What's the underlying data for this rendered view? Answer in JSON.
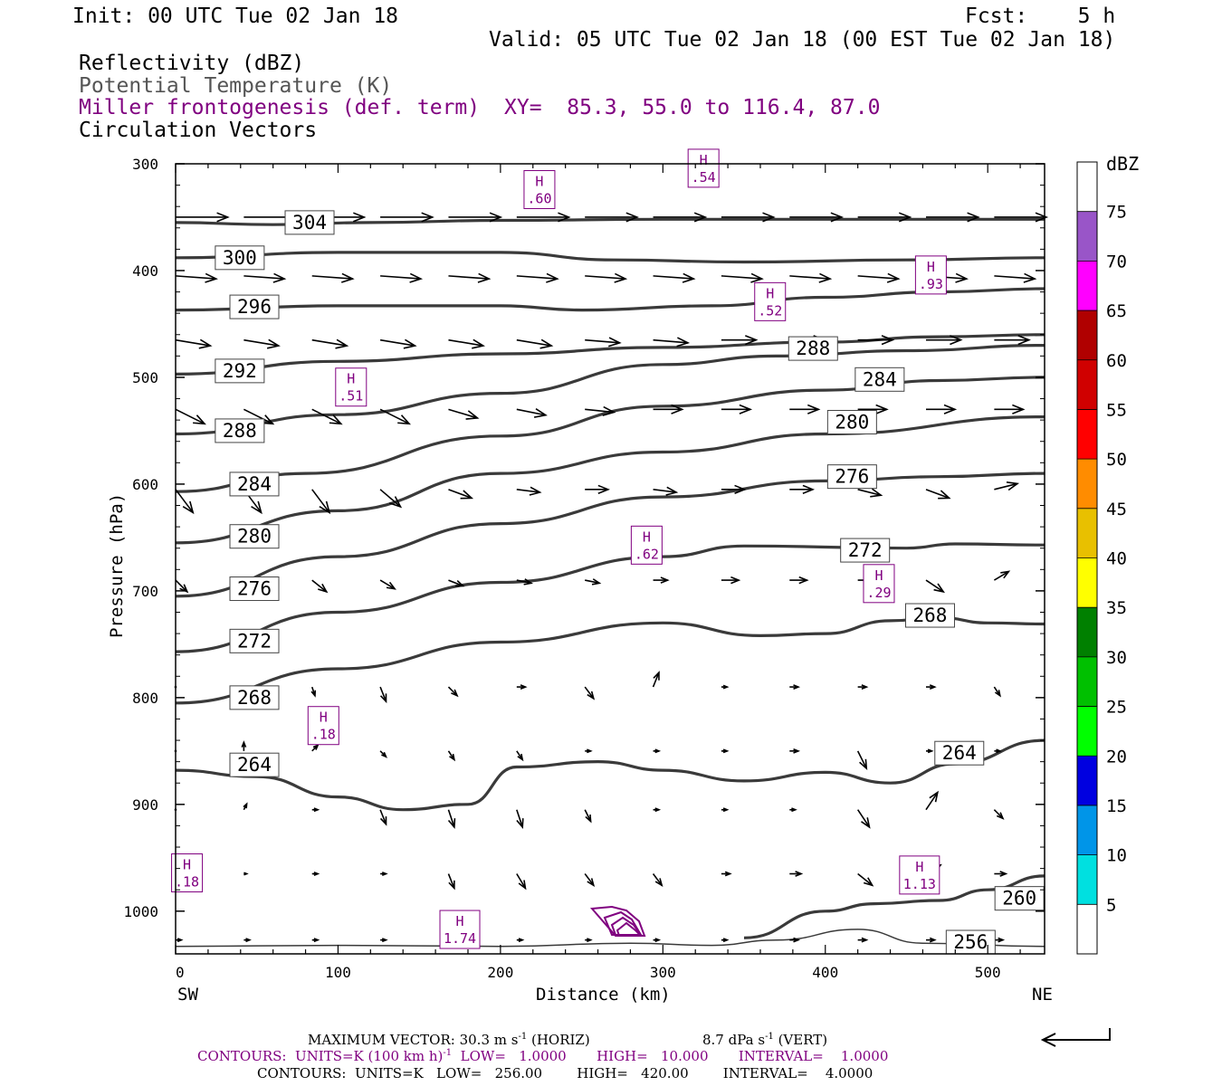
{
  "header": {
    "init": "Init: 00 UTC Tue 02 Jan 18",
    "fcst": "Fcst:    5 h",
    "valid": "Valid: 05 UTC Tue 02 Jan 18 (00 EST Tue 02 Jan 18)",
    "field1": "Reflectivity (dBZ)",
    "field2": "Potential Temperature (K)",
    "field3": "Miller frontogenesis (def. term)",
    "xy": "XY=  85.3, 55.0 to 116.4, 87.0",
    "field4": "Circulation Vectors"
  },
  "colors": {
    "theta": "#3a3a3a",
    "fronto": "#800080",
    "vectors": "#000000"
  },
  "colorbar": {
    "unit": "dBZ",
    "levels": [
      "5",
      "10",
      "15",
      "20",
      "25",
      "30",
      "35",
      "40",
      "45",
      "50",
      "55",
      "60",
      "65",
      "70",
      "75"
    ],
    "colors": [
      "#ffffff",
      "#00e0e0",
      "#0095e8",
      "#0000e0",
      "#00ff00",
      "#00c000",
      "#008000",
      "#ffff00",
      "#e8c000",
      "#ff8c00",
      "#ff0000",
      "#d00000",
      "#b00000",
      "#ff00ff",
      "#9955c8",
      "#ffffff"
    ]
  },
  "chart_data": {
    "type": "contour cross-section",
    "xlabel": "Distance (km)",
    "ylabel": "Pressure (hPa)",
    "xlim": [
      0,
      535
    ],
    "ylim": [
      300,
      1040
    ],
    "xticks": [
      "0",
      "100",
      "200",
      "300",
      "400",
      "500"
    ],
    "yticks": [
      "300",
      "400",
      "500",
      "600",
      "700",
      "800",
      "900",
      "1000"
    ],
    "left_end_label": "SW",
    "right_end_label": "NE",
    "theta_contours": [
      {
        "label": "304",
        "line": [
          [
            0,
            355
          ],
          [
            60,
            357
          ],
          [
            120,
            355
          ],
          [
            200,
            353
          ],
          [
            300,
            352
          ],
          [
            400,
            352
          ],
          [
            535,
            352
          ]
        ]
      },
      {
        "label": "300",
        "line": [
          [
            0,
            388
          ],
          [
            100,
            383
          ],
          [
            200,
            383
          ],
          [
            270,
            390
          ],
          [
            350,
            392
          ],
          [
            450,
            390
          ],
          [
            535,
            388
          ]
        ]
      },
      {
        "label": "296",
        "line": [
          [
            0,
            437
          ],
          [
            100,
            433
          ],
          [
            200,
            433
          ],
          [
            250,
            437
          ],
          [
            330,
            433
          ],
          [
            400,
            425
          ],
          [
            470,
            420
          ],
          [
            535,
            417
          ]
        ]
      },
      {
        "label": "292",
        "line": [
          [
            0,
            497
          ],
          [
            100,
            485
          ],
          [
            200,
            478
          ],
          [
            300,
            472
          ],
          [
            400,
            467
          ],
          [
            470,
            462
          ],
          [
            535,
            460
          ]
        ]
      },
      {
        "label": "288",
        "line": [
          [
            0,
            553
          ],
          [
            100,
            535
          ],
          [
            200,
            515
          ],
          [
            300,
            488
          ],
          [
            370,
            480
          ],
          [
            450,
            475
          ],
          [
            535,
            470
          ]
        ]
      },
      {
        "label": "284",
        "line": [
          [
            0,
            607
          ],
          [
            80,
            590
          ],
          [
            200,
            555
          ],
          [
            300,
            527
          ],
          [
            400,
            512
          ],
          [
            470,
            503
          ],
          [
            535,
            500
          ]
        ]
      },
      {
        "label": "280",
        "line": [
          [
            0,
            655
          ],
          [
            100,
            625
          ],
          [
            200,
            590
          ],
          [
            300,
            570
          ],
          [
            400,
            553
          ],
          [
            535,
            537
          ]
        ]
      },
      {
        "label": "276",
        "line": [
          [
            0,
            705
          ],
          [
            100,
            668
          ],
          [
            200,
            637
          ],
          [
            300,
            612
          ],
          [
            400,
            597
          ],
          [
            470,
            593
          ],
          [
            535,
            590
          ]
        ]
      },
      {
        "label": "272",
        "line": [
          [
            0,
            757
          ],
          [
            100,
            720
          ],
          [
            200,
            692
          ],
          [
            300,
            668
          ],
          [
            350,
            658
          ],
          [
            450,
            660
          ],
          [
            480,
            656
          ],
          [
            535,
            657
          ]
        ]
      },
      {
        "label": "268",
        "line": [
          [
            0,
            805
          ],
          [
            100,
            773
          ],
          [
            200,
            748
          ],
          [
            300,
            730
          ],
          [
            360,
            742
          ],
          [
            400,
            740
          ],
          [
            440,
            728
          ],
          [
            470,
            725
          ],
          [
            500,
            730
          ],
          [
            535,
            731
          ]
        ]
      },
      {
        "label": "264",
        "line": [
          [
            0,
            868
          ],
          [
            50,
            874
          ],
          [
            100,
            893
          ],
          [
            140,
            905
          ],
          [
            180,
            900
          ],
          [
            210,
            865
          ],
          [
            260,
            860
          ],
          [
            300,
            868
          ],
          [
            350,
            878
          ],
          [
            400,
            870
          ],
          [
            440,
            880
          ],
          [
            480,
            862
          ],
          [
            535,
            840
          ]
        ]
      },
      {
        "label": "260",
        "line": [
          [
            350,
            1025
          ],
          [
            400,
            1000
          ],
          [
            430,
            993
          ],
          [
            470,
            990
          ],
          [
            500,
            980
          ],
          [
            535,
            967
          ]
        ]
      },
      {
        "label": "256",
        "line": [
          [
            0,
            1033
          ],
          [
            100,
            1032
          ],
          [
            200,
            1033
          ],
          [
            280,
            1030
          ],
          [
            330,
            1032
          ],
          [
            370,
            1027
          ],
          [
            420,
            1017
          ],
          [
            460,
            1030
          ],
          [
            535,
            1033
          ]
        ]
      }
    ],
    "theta_labels": [
      {
        "text": "304",
        "at": [
          68,
          355
        ]
      },
      {
        "text": "300",
        "at": [
          25,
          388
        ]
      },
      {
        "text": "296",
        "at": [
          34,
          434
        ]
      },
      {
        "text": "292",
        "at": [
          25,
          494
        ]
      },
      {
        "text": "288",
        "at": [
          25,
          550
        ]
      },
      {
        "text": "284",
        "at": [
          34,
          600
        ]
      },
      {
        "text": "280",
        "at": [
          34,
          649
        ]
      },
      {
        "text": "276",
        "at": [
          34,
          698
        ]
      },
      {
        "text": "272",
        "at": [
          34,
          747
        ]
      },
      {
        "text": "268",
        "at": [
          34,
          800
        ]
      },
      {
        "text": "264",
        "at": [
          34,
          863
        ]
      },
      {
        "text": "288",
        "at": [
          378,
          473
        ]
      },
      {
        "text": "284",
        "at": [
          419,
          502
        ]
      },
      {
        "text": "280",
        "at": [
          402,
          542
        ]
      },
      {
        "text": "276",
        "at": [
          402,
          593
        ]
      },
      {
        "text": "272",
        "at": [
          410,
          662
        ]
      },
      {
        "text": "268",
        "at": [
          450,
          723
        ]
      },
      {
        "text": "264",
        "at": [
          468,
          852
        ]
      },
      {
        "text": "260",
        "at": [
          505,
          988
        ]
      },
      {
        "text": "256",
        "at": [
          475,
          1029
        ]
      }
    ],
    "fronto_highs": [
      {
        "text": ".60",
        "at": [
          224,
          325
        ]
      },
      {
        "text": ".54",
        "at": [
          325,
          305
        ]
      },
      {
        "text": ".93",
        "at": [
          465,
          405
        ]
      },
      {
        "text": ".52",
        "at": [
          366,
          430
        ]
      },
      {
        "text": ".51",
        "at": [
          108,
          510
        ]
      },
      {
        "text": ".62",
        "at": [
          290,
          658
        ]
      },
      {
        "text": ".29",
        "at": [
          433,
          694
        ]
      },
      {
        "text": ".18",
        "at": [
          91,
          827
        ]
      },
      {
        "text": ".18",
        "at": [
          7,
          965
        ]
      },
      {
        "text": "1.13",
        "at": [
          458,
          967
        ]
      },
      {
        "text": "1.74",
        "at": [
          175,
          1018
        ]
      }
    ],
    "vector_rows": [
      {
        "p": 350,
        "dx": [
          18,
          18,
          18,
          18,
          18,
          18,
          18,
          18,
          18,
          18,
          18,
          18,
          18
        ],
        "dy": [
          0,
          0,
          0,
          0,
          0,
          0,
          0,
          0,
          0,
          0,
          0,
          0,
          0
        ]
      },
      {
        "p": 405,
        "dx": [
          14,
          14,
          14,
          14,
          14,
          14,
          14,
          14,
          14,
          14,
          14,
          14,
          14
        ],
        "dy": [
          1,
          1,
          1,
          1,
          1,
          1,
          1,
          1,
          1,
          1,
          1,
          1,
          1
        ]
      },
      {
        "p": 465,
        "dx": [
          12,
          12,
          12,
          12,
          12,
          12,
          12,
          12,
          12,
          12,
          12,
          12,
          12
        ],
        "dy": [
          2,
          2,
          2,
          2,
          2,
          2,
          1,
          1,
          0,
          0,
          0,
          0,
          0
        ]
      },
      {
        "p": 530,
        "dx": [
          10,
          10,
          10,
          10,
          10,
          10,
          10,
          10,
          10,
          10,
          10,
          10,
          10
        ],
        "dy": [
          5,
          5,
          5,
          5,
          3,
          2,
          1,
          0,
          0,
          0,
          0,
          0,
          0
        ]
      },
      {
        "p": 605,
        "dx": [
          6,
          6,
          6,
          7,
          8,
          8,
          8,
          8,
          8,
          8,
          8,
          8,
          8
        ],
        "dy": [
          8,
          8,
          8,
          6,
          3,
          1,
          0,
          1,
          0,
          0,
          2,
          3,
          -2
        ]
      },
      {
        "p": 690,
        "dx": [
          4,
          5,
          5,
          5,
          5,
          5,
          5,
          5,
          6,
          6,
          6,
          6,
          5
        ],
        "dy": [
          4,
          6,
          4,
          3,
          2,
          1,
          1,
          0,
          0,
          0,
          0,
          4,
          -3
        ]
      },
      {
        "p": 790,
        "dx": [
          0,
          0,
          1,
          2,
          3,
          3,
          3,
          2,
          2,
          3,
          3,
          3,
          2
        ],
        "dy": [
          0,
          0,
          3,
          5,
          3,
          0,
          4,
          -5,
          0,
          0,
          0,
          0,
          3
        ]
      },
      {
        "p": 850,
        "dx": [
          0,
          0,
          2,
          2,
          2,
          2,
          2,
          2,
          2,
          3,
          3,
          2,
          2
        ],
        "dy": [
          0,
          -3,
          -2,
          2,
          3,
          3,
          0,
          0,
          0,
          0,
          6,
          0,
          0
        ]
      },
      {
        "p": 905,
        "dx": [
          0,
          1,
          2,
          2,
          2,
          2,
          2,
          2,
          2,
          2,
          4,
          4,
          3
        ],
        "dy": [
          0,
          -2,
          0,
          5,
          6,
          6,
          4,
          0,
          0,
          0,
          6,
          -6,
          3
        ]
      },
      {
        "p": 965,
        "dx": [
          0,
          1,
          2,
          2,
          2,
          3,
          3,
          3,
          3,
          4,
          5,
          5,
          4
        ],
        "dy": [
          0,
          0,
          0,
          0,
          5,
          5,
          4,
          4,
          0,
          0,
          4,
          -3,
          0
        ]
      },
      {
        "p": 1027,
        "dx": [
          2,
          2,
          2,
          2,
          2,
          2,
          2,
          2,
          2,
          3,
          3,
          3,
          3
        ],
        "dy": [
          0,
          0,
          0,
          0,
          0,
          0,
          0,
          0,
          0,
          0,
          0,
          0,
          0
        ]
      }
    ],
    "vector_xs": [
      0,
      42,
      84,
      126,
      168,
      210,
      252,
      294,
      336,
      378,
      420,
      462,
      504
    ]
  },
  "footer": {
    "line1a": "MAXIMUM VECTOR:  30.3 m s",
    "line1b": "-1",
    "line1c": " (HORIZ)",
    "line1d": "8.7 dPa s",
    "line1e": "-1",
    "line1f": " (VERT)",
    "line2a": "CONTOURS:  UNITS=K (100 km h)",
    "line2b": "-1",
    "line2c": "  LOW=   1.0000       HIGH=   10.000       INTERVAL=    1.0000",
    "line3": "CONTOURS:  UNITS=K   LOW=   256.00        HIGH=   420.00        INTERVAL=    4.0000"
  }
}
